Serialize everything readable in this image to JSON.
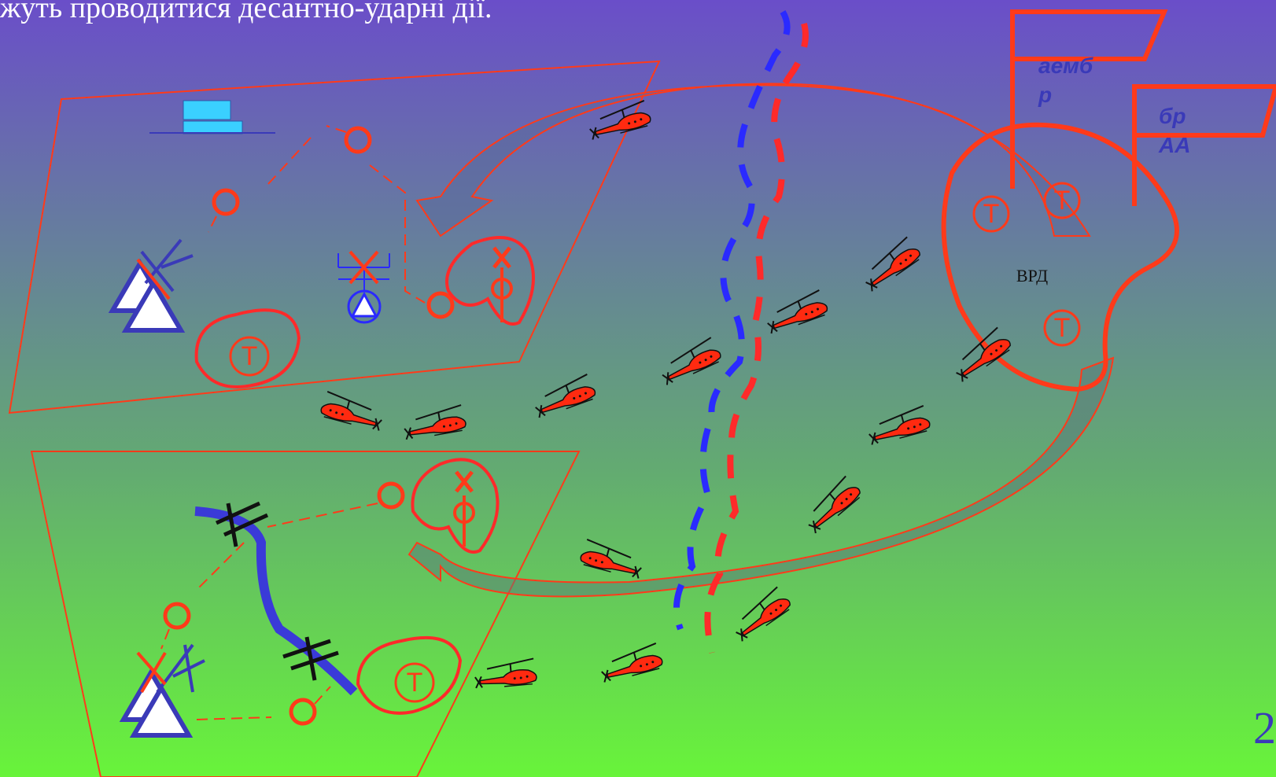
{
  "header": {
    "caption": "жуть проводитися десантно-ударні дії."
  },
  "labels": {
    "aemb": [
      "аемб",
      "р"
    ],
    "br_aa": [
      "бр",
      "АА"
    ],
    "vrd": "ВРД"
  },
  "tank_marks": [
    "Т",
    "Т",
    "Т",
    "Т",
    "Т"
  ],
  "page_number": "2"
}
